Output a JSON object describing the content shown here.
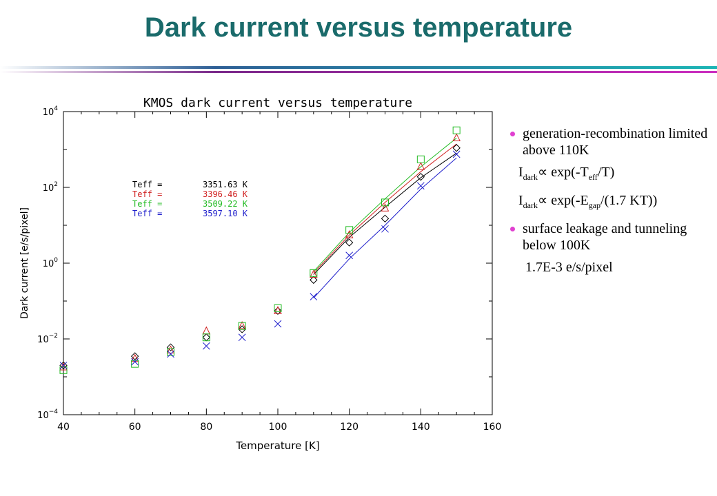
{
  "slide": {
    "title": "Dark current versus temperature"
  },
  "bullets": {
    "item1": "generation-recombination limited above 110K",
    "formula1": {
      "prefix": "I",
      "sub1": "dark",
      "mid": "∝ exp(-T",
      "sub2": "eff",
      "suffix": "/T)"
    },
    "formula2": {
      "prefix": "I",
      "sub1": "dark",
      "mid": "∝ exp(-E",
      "sub2": "gap",
      "suffix": "/(1.7 KT))"
    },
    "item2": "surface leakage and tunneling below 100K",
    "value": "1.7E-3 e/s/pixel"
  },
  "chart_data": {
    "type": "scatter",
    "title": "KMOS dark current versus temperature",
    "xlabel": "Temperature [K]",
    "ylabel": "Dark current [e/s/pixel]",
    "xlim": [
      40,
      160
    ],
    "ylim_log10": [
      -4,
      4
    ],
    "yscale": "log",
    "x_ticks": [
      40,
      60,
      80,
      100,
      120,
      140,
      160
    ],
    "y_tick_exponents": [
      -4,
      -2,
      0,
      2,
      4
    ],
    "legend_placement": "upper-left",
    "series": [
      {
        "name": "Teff =",
        "value": "3351.63 K",
        "color": "#000000",
        "marker": "diamond",
        "x": [
          40,
          60,
          70,
          80,
          90,
          100,
          110,
          120,
          130,
          140,
          150
        ],
        "y": [
          0.002,
          0.0035,
          0.006,
          0.011,
          0.018,
          0.055,
          0.36,
          3.5,
          15,
          190,
          1100
        ],
        "fit_x": [
          110,
          120,
          130,
          140,
          150
        ],
        "fit_y": [
          0.5,
          4.8,
          30,
          180,
          800
        ]
      },
      {
        "name": "Teff =",
        "value": "3396.46 K",
        "color": "#d02020",
        "marker": "triangle",
        "x": [
          40,
          60,
          70,
          80,
          90,
          100,
          110,
          120,
          130,
          140,
          150
        ],
        "y": [
          0.0018,
          0.003,
          0.005,
          0.016,
          0.022,
          0.055,
          0.5,
          5.5,
          28,
          350,
          2000
        ],
        "fit_x": [
          110,
          120,
          130,
          140,
          150
        ],
        "fit_y": [
          0.55,
          5.5,
          40,
          260,
          1400
        ]
      },
      {
        "name": "Teff =",
        "value": "3509.22 K",
        "color": "#22bb22",
        "marker": "square",
        "x": [
          40,
          60,
          70,
          80,
          90,
          100,
          110,
          120,
          130,
          140,
          150
        ],
        "y": [
          0.0015,
          0.0022,
          0.0045,
          0.011,
          0.022,
          0.065,
          0.55,
          7.5,
          40,
          550,
          3200
        ],
        "fit_x": [
          110,
          120,
          130,
          140,
          150
        ],
        "fit_y": [
          0.6,
          6.5,
          50,
          350,
          2000
        ]
      },
      {
        "name": "Teff =",
        "value": "3597.10 K",
        "color": "#2020cc",
        "marker": "x",
        "x": [
          40,
          60,
          70,
          80,
          90,
          100,
          110,
          120,
          130,
          140,
          150
        ],
        "y": [
          0.002,
          0.0025,
          0.004,
          0.0065,
          0.011,
          0.025,
          0.13,
          1.6,
          8,
          110,
          750
        ],
        "fit_x": [
          110,
          120,
          130,
          140,
          150
        ],
        "fit_y": [
          0.12,
          1.3,
          10,
          90,
          600
        ]
      }
    ]
  }
}
